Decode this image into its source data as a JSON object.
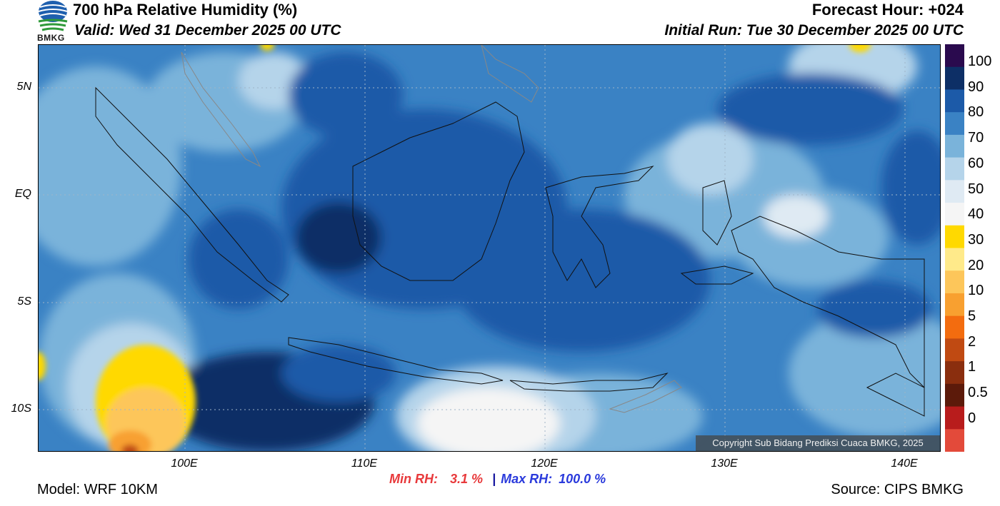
{
  "header": {
    "title": "700 hPa Relative Humidity (%)",
    "valid": "Valid: Wed 31 December 2025 00 UTC",
    "forecast_hour": "Forecast Hour: +024",
    "initial_run": "Initial Run: Tue 30 December 2025 00 UTC",
    "logo_text": "BMKG"
  },
  "map": {
    "lat_labels": [
      "5N",
      "EQ",
      "5S",
      "10S"
    ],
    "lon_labels": [
      "100E",
      "110E",
      "120E",
      "130E",
      "140E"
    ],
    "copyright": "Copyright Sub Bidang Prediksi Cuaca BMKG, 2025"
  },
  "colorbar": {
    "labels": [
      "100",
      "90",
      "80",
      "70",
      "60",
      "50",
      "40",
      "30",
      "20",
      "10",
      "5",
      "2",
      "1",
      "0.5",
      "0"
    ],
    "colors": [
      "#2a0a4e",
      "#0d2f66",
      "#1c5aa8",
      "#3a82c4",
      "#7ab3da",
      "#b5d4ea",
      "#dfeaf3",
      "#f5f5f5",
      "#ffd900",
      "#ffea8a",
      "#fdc65a",
      "#f8a030",
      "#f36c0f",
      "#c04a12",
      "#8a2e0e",
      "#5c1a0a",
      "#b81c1c",
      "#e34a3a"
    ]
  },
  "footer": {
    "min_rh_label": "Min RH:",
    "min_rh_value": "3.1 %",
    "separator": "|",
    "max_rh_label": "Max RH:",
    "max_rh_value": "100.0 %",
    "model": "Model: WRF 10KM",
    "source": "Source: CIPS BMKG"
  }
}
